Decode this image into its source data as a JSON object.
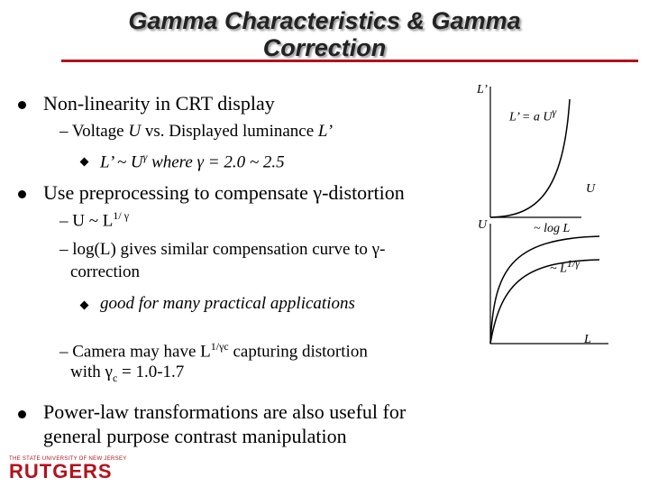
{
  "title": {
    "line1": "Gamma Characteristics & Gamma",
    "line2": "Correction"
  },
  "bullets": {
    "b1": {
      "text": "Non-linearity in CRT display"
    },
    "b1_sub": {
      "prefix": "– Voltage ",
      "u": "U",
      "mid": " vs. Displayed luminance ",
      "l": "L’"
    },
    "b1_subsub": {
      "text": "L’ ~ U",
      "gamma": "γ",
      "rest": " where γ = 2.0 ~ 2.5"
    },
    "b2": {
      "text": "Use preprocessing to compensate γ-distortion"
    },
    "b2_sub1": {
      "text": "– U ~ L",
      "sup": "1/ γ"
    },
    "b2_sub2": {
      "line1": "– log(L) gives similar compensation curve to γ-",
      "line2": "correction"
    },
    "b2_subsub": {
      "text": "good for many practical applications"
    },
    "b2_sub3": {
      "prefix": "– Camera may have L",
      "sup": "1/γc",
      "suffix": " capturing distortion",
      "line2a": "with γ",
      "sub": "c",
      "line2b": " = 1.0-1.7"
    },
    "b3": {
      "line1": "Power-law transformations are also useful for",
      "line2": "general purpose contrast manipulation"
    }
  },
  "graph_top": {
    "y_label": "L’",
    "curve_label": "L’ = a U",
    "curve_sup": "γ",
    "x_label": "U"
  },
  "graph_bottom": {
    "y_label": "U",
    "curve1_label": "~ log L",
    "curve2_label": "~ L",
    "curve2_sup": "1/γ",
    "x_label": "L"
  },
  "logo": {
    "top": "THE STATE UNIVERSITY OF NEW JERSEY",
    "main": "RUTGERS"
  },
  "colors": {
    "accent": "#b3121c",
    "title_shadow": "#9a9a9a"
  }
}
